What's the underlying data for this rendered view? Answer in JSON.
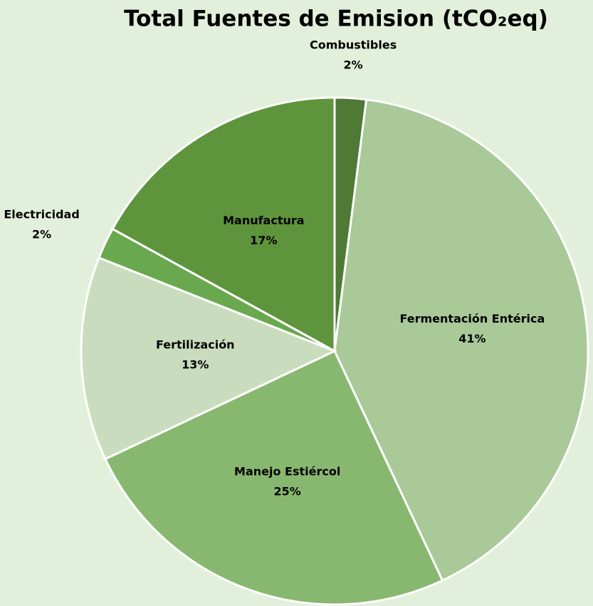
{
  "chart_data": {
    "type": "pie",
    "title": "Total Fuentes de Emision (tCO₂eq)",
    "categories": [
      "Combustibles",
      "Fermentación Entérica",
      "Manejo Estiércol",
      "Fertilización",
      "Electricidad",
      "Manufactura"
    ],
    "values": [
      2,
      41,
      25,
      13,
      2,
      17
    ],
    "value_labels": [
      "2%",
      "41%",
      "25%",
      "13%",
      "2%",
      "17%"
    ],
    "colors": [
      "#4e7a35",
      "#a9c998",
      "#88b86f",
      "#cadcbe",
      "#6aa84f",
      "#5e943b"
    ]
  }
}
